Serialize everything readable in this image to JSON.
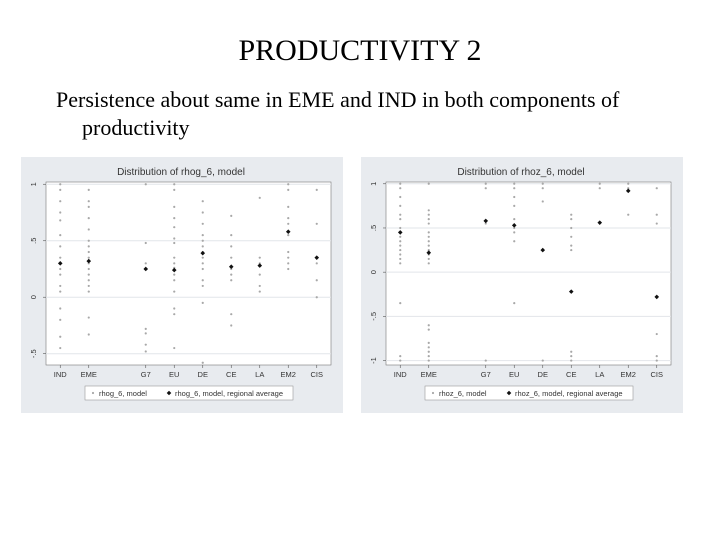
{
  "slide": {
    "title": "PRODUCTIVITY 2",
    "body": "Persistence about same in EME and IND in both components of productivity"
  },
  "chart_data": [
    {
      "type": "scatter",
      "title": "Distribution of rhog_6, model",
      "categories": [
        "IND",
        "EME",
        "G7",
        "EU",
        "DE",
        "CE",
        "LA",
        "EM2",
        "CIS"
      ],
      "category_x": [
        1,
        2,
        4,
        5,
        6,
        7,
        8,
        9,
        10
      ],
      "xlim": [
        0.5,
        10.5
      ],
      "ylim": [
        -0.6,
        1.02
      ],
      "yticks": [
        -0.5,
        0,
        0.5,
        1
      ],
      "ytick_labels": [
        "-.5",
        "0",
        ".5",
        "1"
      ],
      "grid": true,
      "legend_position": "bottom",
      "series": [
        {
          "name": "rhog_6, model",
          "points": [
            [
              1,
              1
            ],
            [
              1,
              0.95
            ],
            [
              1,
              0.85
            ],
            [
              1,
              0.75
            ],
            [
              1,
              0.68
            ],
            [
              1,
              0.55
            ],
            [
              1,
              0.45
            ],
            [
              1,
              0.35
            ],
            [
              1,
              0.3
            ],
            [
              1,
              0.25
            ],
            [
              1,
              0.2
            ],
            [
              1,
              0.1
            ],
            [
              1,
              0.05
            ],
            [
              1,
              -0.1
            ],
            [
              1,
              -0.2
            ],
            [
              1,
              -0.35
            ],
            [
              1,
              -0.45
            ],
            [
              2,
              0.95
            ],
            [
              2,
              0.85
            ],
            [
              2,
              0.8
            ],
            [
              2,
              0.7
            ],
            [
              2,
              0.6
            ],
            [
              2,
              0.5
            ],
            [
              2,
              0.45
            ],
            [
              2,
              0.4
            ],
            [
              2,
              0.35
            ],
            [
              2,
              0.3
            ],
            [
              2,
              0.25
            ],
            [
              2,
              0.2
            ],
            [
              2,
              0.15
            ],
            [
              2,
              0.1
            ],
            [
              2,
              0.05
            ],
            [
              2,
              -0.18
            ],
            [
              2,
              -0.33
            ],
            [
              4,
              1
            ],
            [
              4,
              0.48
            ],
            [
              4,
              0.3
            ],
            [
              4,
              0.25
            ],
            [
              4,
              -0.28
            ],
            [
              4,
              -0.32
            ],
            [
              4,
              -0.42
            ],
            [
              4,
              -0.48
            ],
            [
              5,
              1
            ],
            [
              5,
              0.95
            ],
            [
              5,
              0.8
            ],
            [
              5,
              0.7
            ],
            [
              5,
              0.62
            ],
            [
              5,
              0.52
            ],
            [
              5,
              0.48
            ],
            [
              5,
              0.35
            ],
            [
              5,
              0.3
            ],
            [
              5,
              0.26
            ],
            [
              5,
              0.2
            ],
            [
              5,
              0.15
            ],
            [
              5,
              0.05
            ],
            [
              5,
              -0.1
            ],
            [
              5,
              -0.15
            ],
            [
              5,
              -0.45
            ],
            [
              6,
              0.85
            ],
            [
              6,
              0.75
            ],
            [
              6,
              0.65
            ],
            [
              6,
              0.55
            ],
            [
              6,
              0.5
            ],
            [
              6,
              0.45
            ],
            [
              6,
              0.4
            ],
            [
              6,
              0.35
            ],
            [
              6,
              0.3
            ],
            [
              6,
              0.25
            ],
            [
              6,
              0.15
            ],
            [
              6,
              0.1
            ],
            [
              6,
              -0.05
            ],
            [
              6,
              -0.58
            ],
            [
              7,
              0.72
            ],
            [
              7,
              0.55
            ],
            [
              7,
              0.45
            ],
            [
              7,
              0.35
            ],
            [
              7,
              0.25
            ],
            [
              7,
              0.2
            ],
            [
              7,
              0.15
            ],
            [
              7,
              -0.15
            ],
            [
              7,
              -0.25
            ],
            [
              8,
              0.88
            ],
            [
              8,
              0.35
            ],
            [
              8,
              0.3
            ],
            [
              8,
              0.2
            ],
            [
              8,
              0.1
            ],
            [
              8,
              0.05
            ],
            [
              9,
              1
            ],
            [
              9,
              0.95
            ],
            [
              9,
              0.8
            ],
            [
              9,
              0.7
            ],
            [
              9,
              0.65
            ],
            [
              9,
              0.55
            ],
            [
              9,
              0.4
            ],
            [
              9,
              0.35
            ],
            [
              9,
              0.3
            ],
            [
              9,
              0.25
            ],
            [
              10,
              0.95
            ],
            [
              10,
              0.65
            ],
            [
              10,
              0.35
            ],
            [
              10,
              0.3
            ],
            [
              10,
              0.15
            ],
            [
              10,
              0.0
            ]
          ]
        },
        {
          "name": "rhog_6, model, regional average",
          "points": [
            [
              1,
              0.3
            ],
            [
              2,
              0.32
            ],
            [
              4,
              0.25
            ],
            [
              5,
              0.24
            ],
            [
              6,
              0.39
            ],
            [
              7,
              0.27
            ],
            [
              8,
              0.28
            ],
            [
              9,
              0.58
            ],
            [
              10,
              0.35
            ]
          ]
        }
      ]
    },
    {
      "type": "scatter",
      "title": "Distribution of rhoz_6, model",
      "categories": [
        "IND",
        "EME",
        "G7",
        "EU",
        "DE",
        "CE",
        "LA",
        "EM2",
        "CIS"
      ],
      "category_x": [
        1,
        2,
        4,
        5,
        6,
        7,
        8,
        9,
        10
      ],
      "xlim": [
        0.5,
        10.5
      ],
      "ylim": [
        -1.05,
        1.02
      ],
      "yticks": [
        -1,
        -0.5,
        0,
        0.5,
        1
      ],
      "ytick_labels": [
        "-1",
        "-.5",
        "0",
        ".5",
        "1"
      ],
      "grid": true,
      "legend_position": "bottom",
      "series": [
        {
          "name": "rhoz_6, model",
          "points": [
            [
              1,
              1
            ],
            [
              1,
              0.95
            ],
            [
              1,
              0.85
            ],
            [
              1,
              0.75
            ],
            [
              1,
              0.65
            ],
            [
              1,
              0.6
            ],
            [
              1,
              0.5
            ],
            [
              1,
              0.45
            ],
            [
              1,
              0.4
            ],
            [
              1,
              0.35
            ],
            [
              1,
              0.3
            ],
            [
              1,
              0.25
            ],
            [
              1,
              0.2
            ],
            [
              1,
              0.15
            ],
            [
              1,
              0.1
            ],
            [
              1,
              -0.35
            ],
            [
              1,
              -0.95
            ],
            [
              1,
              -1
            ],
            [
              2,
              1
            ],
            [
              2,
              0.7
            ],
            [
              2,
              0.65
            ],
            [
              2,
              0.6
            ],
            [
              2,
              0.55
            ],
            [
              2,
              0.45
            ],
            [
              2,
              0.4
            ],
            [
              2,
              0.35
            ],
            [
              2,
              0.3
            ],
            [
              2,
              0.25
            ],
            [
              2,
              0.2
            ],
            [
              2,
              0.15
            ],
            [
              2,
              0.1
            ],
            [
              2,
              -0.6
            ],
            [
              2,
              -0.65
            ],
            [
              2,
              -0.8
            ],
            [
              2,
              -0.85
            ],
            [
              2,
              -0.9
            ],
            [
              2,
              -0.95
            ],
            [
              2,
              -1
            ],
            [
              4,
              1
            ],
            [
              4,
              0.95
            ],
            [
              4,
              0.55
            ],
            [
              4,
              -1
            ],
            [
              5,
              1
            ],
            [
              5,
              0.95
            ],
            [
              5,
              0.85
            ],
            [
              5,
              0.75
            ],
            [
              5,
              0.6
            ],
            [
              5,
              0.5
            ],
            [
              5,
              0.45
            ],
            [
              5,
              0.35
            ],
            [
              5,
              -0.35
            ],
            [
              6,
              1
            ],
            [
              6,
              0.95
            ],
            [
              6,
              0.8
            ],
            [
              6,
              -1
            ],
            [
              7,
              0.65
            ],
            [
              7,
              0.6
            ],
            [
              7,
              0.5
            ],
            [
              7,
              0.4
            ],
            [
              7,
              0.3
            ],
            [
              7,
              0.25
            ],
            [
              7,
              -0.9
            ],
            [
              7,
              -0.95
            ],
            [
              7,
              -1
            ],
            [
              8,
              1
            ],
            [
              8,
              0.95
            ],
            [
              9,
              1
            ],
            [
              9,
              0.95
            ],
            [
              9,
              0.65
            ],
            [
              10,
              0.95
            ],
            [
              10,
              0.65
            ],
            [
              10,
              0.55
            ],
            [
              10,
              -0.7
            ],
            [
              10,
              -0.95
            ],
            [
              10,
              -1
            ]
          ]
        },
        {
          "name": "rhoz_6, model, regional average",
          "points": [
            [
              1,
              0.45
            ],
            [
              2,
              0.22
            ],
            [
              4,
              0.58
            ],
            [
              5,
              0.53
            ],
            [
              6,
              0.25
            ],
            [
              7,
              -0.22
            ],
            [
              8,
              0.56
            ],
            [
              9,
              0.92
            ],
            [
              10,
              -0.28
            ]
          ]
        }
      ]
    }
  ]
}
